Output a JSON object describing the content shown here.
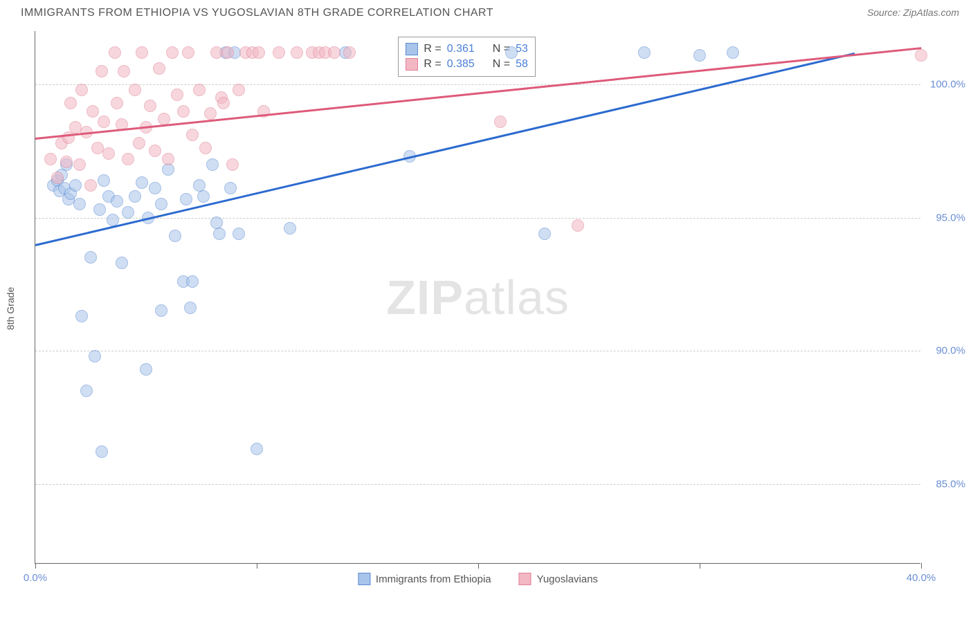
{
  "title": "IMMIGRANTS FROM ETHIOPIA VS YUGOSLAVIAN 8TH GRADE CORRELATION CHART",
  "source": "Source: ZipAtlas.com",
  "watermark_bold": "ZIP",
  "watermark_light": "atlas",
  "ylabel": "8th Grade",
  "chart": {
    "type": "scatter",
    "xlim": [
      0,
      40
    ],
    "ylim": [
      82,
      102
    ],
    "xtick_positions": [
      0,
      10,
      20,
      30,
      40
    ],
    "xtick_labels": [
      "0.0%",
      "",
      "",
      "",
      "40.0%"
    ],
    "ytick_positions": [
      85,
      90,
      95,
      100
    ],
    "ytick_labels": [
      "85.0%",
      "90.0%",
      "95.0%",
      "100.0%"
    ],
    "grid_color": "#cccccc",
    "background_color": "#ffffff",
    "point_radius": 9,
    "point_opacity": 0.55,
    "series": [
      {
        "name": "Immigrants from Ethiopia",
        "fill": "#a8c4ea",
        "stroke": "#5a8ad0",
        "trend_color": "#2b6ad0",
        "R": "0.361",
        "N": "53",
        "trend": {
          "x1": 0,
          "y1": 94.0,
          "x2": 37,
          "y2": 101.2
        },
        "points": [
          [
            0.8,
            96.2
          ],
          [
            1.0,
            96.4
          ],
          [
            1.1,
            96.0
          ],
          [
            1.2,
            96.6
          ],
          [
            1.3,
            96.1
          ],
          [
            1.4,
            97.0
          ],
          [
            1.5,
            95.7
          ],
          [
            1.6,
            95.9
          ],
          [
            1.8,
            96.2
          ],
          [
            2.0,
            95.5
          ],
          [
            2.1,
            91.3
          ],
          [
            2.3,
            88.5
          ],
          [
            2.5,
            93.5
          ],
          [
            2.7,
            89.8
          ],
          [
            2.9,
            95.3
          ],
          [
            3.0,
            86.2
          ],
          [
            3.1,
            96.4
          ],
          [
            3.3,
            95.8
          ],
          [
            3.5,
            94.9
          ],
          [
            3.7,
            95.6
          ],
          [
            3.9,
            93.3
          ],
          [
            4.2,
            95.2
          ],
          [
            4.5,
            95.8
          ],
          [
            4.8,
            96.3
          ],
          [
            5.0,
            89.3
          ],
          [
            5.1,
            95.0
          ],
          [
            5.4,
            96.1
          ],
          [
            5.7,
            95.5
          ],
          [
            5.7,
            91.5
          ],
          [
            6.0,
            96.8
          ],
          [
            6.3,
            94.3
          ],
          [
            6.7,
            92.6
          ],
          [
            6.8,
            95.7
          ],
          [
            7.0,
            91.6
          ],
          [
            7.1,
            92.6
          ],
          [
            7.4,
            96.2
          ],
          [
            7.6,
            95.8
          ],
          [
            8.0,
            97.0
          ],
          [
            8.2,
            94.8
          ],
          [
            8.3,
            94.4
          ],
          [
            8.6,
            101.2
          ],
          [
            8.8,
            96.1
          ],
          [
            9.0,
            101.2
          ],
          [
            9.2,
            94.4
          ],
          [
            10.0,
            86.3
          ],
          [
            11.5,
            94.6
          ],
          [
            14.0,
            101.2
          ],
          [
            16.9,
            97.3
          ],
          [
            21.5,
            101.2
          ],
          [
            23.0,
            94.4
          ],
          [
            27.5,
            101.2
          ],
          [
            30.0,
            101.1
          ],
          [
            31.5,
            101.2
          ]
        ]
      },
      {
        "name": "Yugoslavians",
        "fill": "#f2b7c3",
        "stroke": "#e07f95",
        "trend_color": "#de5a7a",
        "R": "0.385",
        "N": "58",
        "trend": {
          "x1": 0,
          "y1": 98.0,
          "x2": 40,
          "y2": 101.4
        },
        "points": [
          [
            0.7,
            97.2
          ],
          [
            1.0,
            96.5
          ],
          [
            1.2,
            97.8
          ],
          [
            1.4,
            97.1
          ],
          [
            1.5,
            98.0
          ],
          [
            1.6,
            99.3
          ],
          [
            1.8,
            98.4
          ],
          [
            2.0,
            97.0
          ],
          [
            2.1,
            99.8
          ],
          [
            2.3,
            98.2
          ],
          [
            2.5,
            96.2
          ],
          [
            2.6,
            99.0
          ],
          [
            2.8,
            97.6
          ],
          [
            3.0,
            100.5
          ],
          [
            3.1,
            98.6
          ],
          [
            3.3,
            97.4
          ],
          [
            3.6,
            101.2
          ],
          [
            3.7,
            99.3
          ],
          [
            3.9,
            98.5
          ],
          [
            4.0,
            100.5
          ],
          [
            4.2,
            97.2
          ],
          [
            4.5,
            99.8
          ],
          [
            4.7,
            97.8
          ],
          [
            4.8,
            101.2
          ],
          [
            5.0,
            98.4
          ],
          [
            5.2,
            99.2
          ],
          [
            5.4,
            97.5
          ],
          [
            5.6,
            100.6
          ],
          [
            5.8,
            98.7
          ],
          [
            6.0,
            97.2
          ],
          [
            6.2,
            101.2
          ],
          [
            6.4,
            99.6
          ],
          [
            6.7,
            99.0
          ],
          [
            6.9,
            101.2
          ],
          [
            7.1,
            98.1
          ],
          [
            7.4,
            99.8
          ],
          [
            7.7,
            97.6
          ],
          [
            7.9,
            98.9
          ],
          [
            8.2,
            101.2
          ],
          [
            8.4,
            99.5
          ],
          [
            8.5,
            99.3
          ],
          [
            8.7,
            101.2
          ],
          [
            8.9,
            97.0
          ],
          [
            9.2,
            99.8
          ],
          [
            9.5,
            101.2
          ],
          [
            9.8,
            101.2
          ],
          [
            10.1,
            101.2
          ],
          [
            10.3,
            99.0
          ],
          [
            11.0,
            101.2
          ],
          [
            11.8,
            101.2
          ],
          [
            12.5,
            101.2
          ],
          [
            12.8,
            101.2
          ],
          [
            13.1,
            101.2
          ],
          [
            13.5,
            101.2
          ],
          [
            14.2,
            101.2
          ],
          [
            21.0,
            98.6
          ],
          [
            24.5,
            94.7
          ],
          [
            40.0,
            101.1
          ]
        ]
      }
    ],
    "stats_box": {
      "left_pct": 41,
      "top_pct": 1
    },
    "stats_labels": {
      "R": "R  =",
      "N": "N  ="
    }
  },
  "legend": {
    "items": [
      "Immigrants from Ethiopia",
      "Yugoslavians"
    ]
  }
}
